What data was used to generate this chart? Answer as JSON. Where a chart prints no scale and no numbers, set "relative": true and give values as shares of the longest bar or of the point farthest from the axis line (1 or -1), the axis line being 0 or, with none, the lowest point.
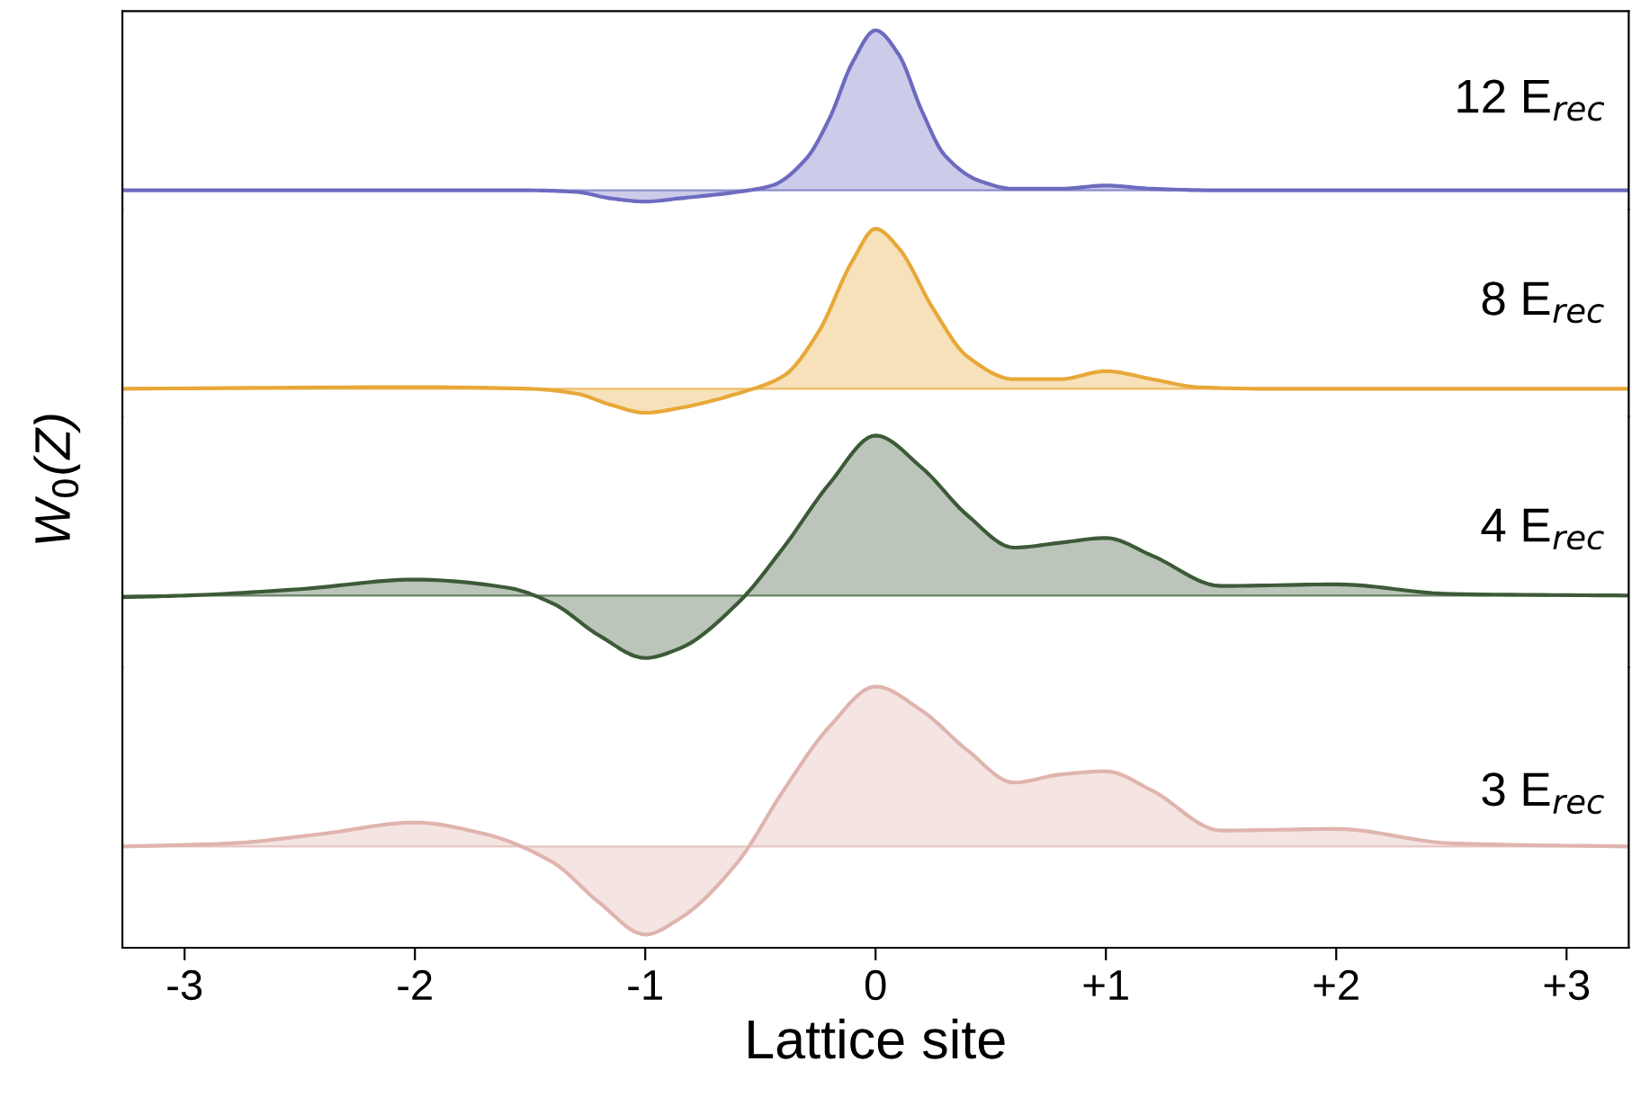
{
  "chart_data": [
    {
      "type": "area",
      "relative": true,
      "ylabel": "W$_{0}$(Z)",
      "tick_labels": false,
      "xlim": [
        -3.27,
        3.27
      ],
      "annotations": [
        "12 E$_{rec}$"
      ],
      "x": [
        -3.27,
        -2,
        -1.5,
        -1.3,
        -1.15,
        -1,
        -0.85,
        -0.6,
        -0.45,
        -0.3,
        -0.2,
        -0.1,
        0,
        0.1,
        0.2,
        0.3,
        0.45,
        0.6,
        0.8,
        1,
        1.2,
        1.5,
        3.27
      ],
      "series": [
        {
          "color": "#6d6bbf",
          "values": [
            0,
            0,
            0,
            -0.01,
            -0.05,
            -0.07,
            -0.05,
            -0.01,
            0.03,
            0.2,
            0.45,
            0.8,
            1,
            0.85,
            0.5,
            0.22,
            0.06,
            0.01,
            0.01,
            0.03,
            0.01,
            0,
            0
          ]
        }
      ]
    },
    {
      "type": "area",
      "relative": true,
      "tick_labels": false,
      "xlim": [
        -3.27,
        3.27
      ],
      "annotations": [
        "8 E$_{rec}$"
      ],
      "x": [
        -3.27,
        -2,
        -1.5,
        -1.3,
        -1.15,
        -1,
        -0.85,
        -0.6,
        -0.4,
        -0.25,
        -0.1,
        0,
        0.1,
        0.25,
        0.4,
        0.6,
        0.8,
        1,
        1.2,
        1.4,
        1.7,
        3.27
      ],
      "series": [
        {
          "color": "#e8a838",
          "values": [
            0,
            0.01,
            0,
            -0.03,
            -0.1,
            -0.15,
            -0.12,
            -0.03,
            0.08,
            0.35,
            0.8,
            1,
            0.88,
            0.5,
            0.2,
            0.06,
            0.06,
            0.11,
            0.06,
            0.01,
            0,
            0
          ]
        }
      ]
    },
    {
      "type": "area",
      "relative": true,
      "tick_labels": false,
      "xlim": [
        -3.27,
        3.27
      ],
      "annotations": [
        "4 E$_{rec}$"
      ],
      "x": [
        -3.27,
        -3,
        -2.5,
        -2,
        -1.6,
        -1.4,
        -1.2,
        -1,
        -0.85,
        -0.6,
        -0.4,
        -0.2,
        0,
        0.2,
        0.4,
        0.6,
        0.8,
        1,
        1.2,
        1.5,
        2,
        2.5,
        3.27
      ],
      "series": [
        {
          "color": "#3d5a38",
          "values": [
            -0.01,
            0,
            0.04,
            0.1,
            0.05,
            -0.05,
            -0.25,
            -0.39,
            -0.33,
            -0.05,
            0.3,
            0.7,
            1,
            0.8,
            0.5,
            0.3,
            0.33,
            0.36,
            0.25,
            0.06,
            0.07,
            0.01,
            0
          ]
        }
      ]
    },
    {
      "type": "area",
      "relative": true,
      "tick_labels": "x",
      "xlabel": "Lattice site",
      "xlim": [
        -3.27,
        3.27
      ],
      "annotations": [
        "3 E$_{rec}$"
      ],
      "xticks": [
        -3,
        -2,
        -1,
        0,
        {
          "value": 1,
          "label": "+1"
        },
        {
          "value": 2,
          "label": "+2"
        },
        {
          "value": 3,
          "label": "+3"
        }
      ],
      "x": [
        -3.27,
        -2.8,
        -2.4,
        -2,
        -1.7,
        -1.4,
        -1.2,
        -1,
        -0.85,
        -0.6,
        -0.4,
        -0.2,
        0,
        0.2,
        0.4,
        0.6,
        0.8,
        1,
        1.2,
        1.5,
        2,
        2.5,
        3.27
      ],
      "series": [
        {
          "color": "#e0b4ae",
          "values": [
            0,
            0.02,
            0.08,
            0.15,
            0.08,
            -0.1,
            -0.35,
            -0.55,
            -0.45,
            -0.1,
            0.35,
            0.75,
            1,
            0.85,
            0.6,
            0.4,
            0.45,
            0.47,
            0.35,
            0.1,
            0.11,
            0.02,
            0
          ]
        }
      ]
    }
  ]
}
